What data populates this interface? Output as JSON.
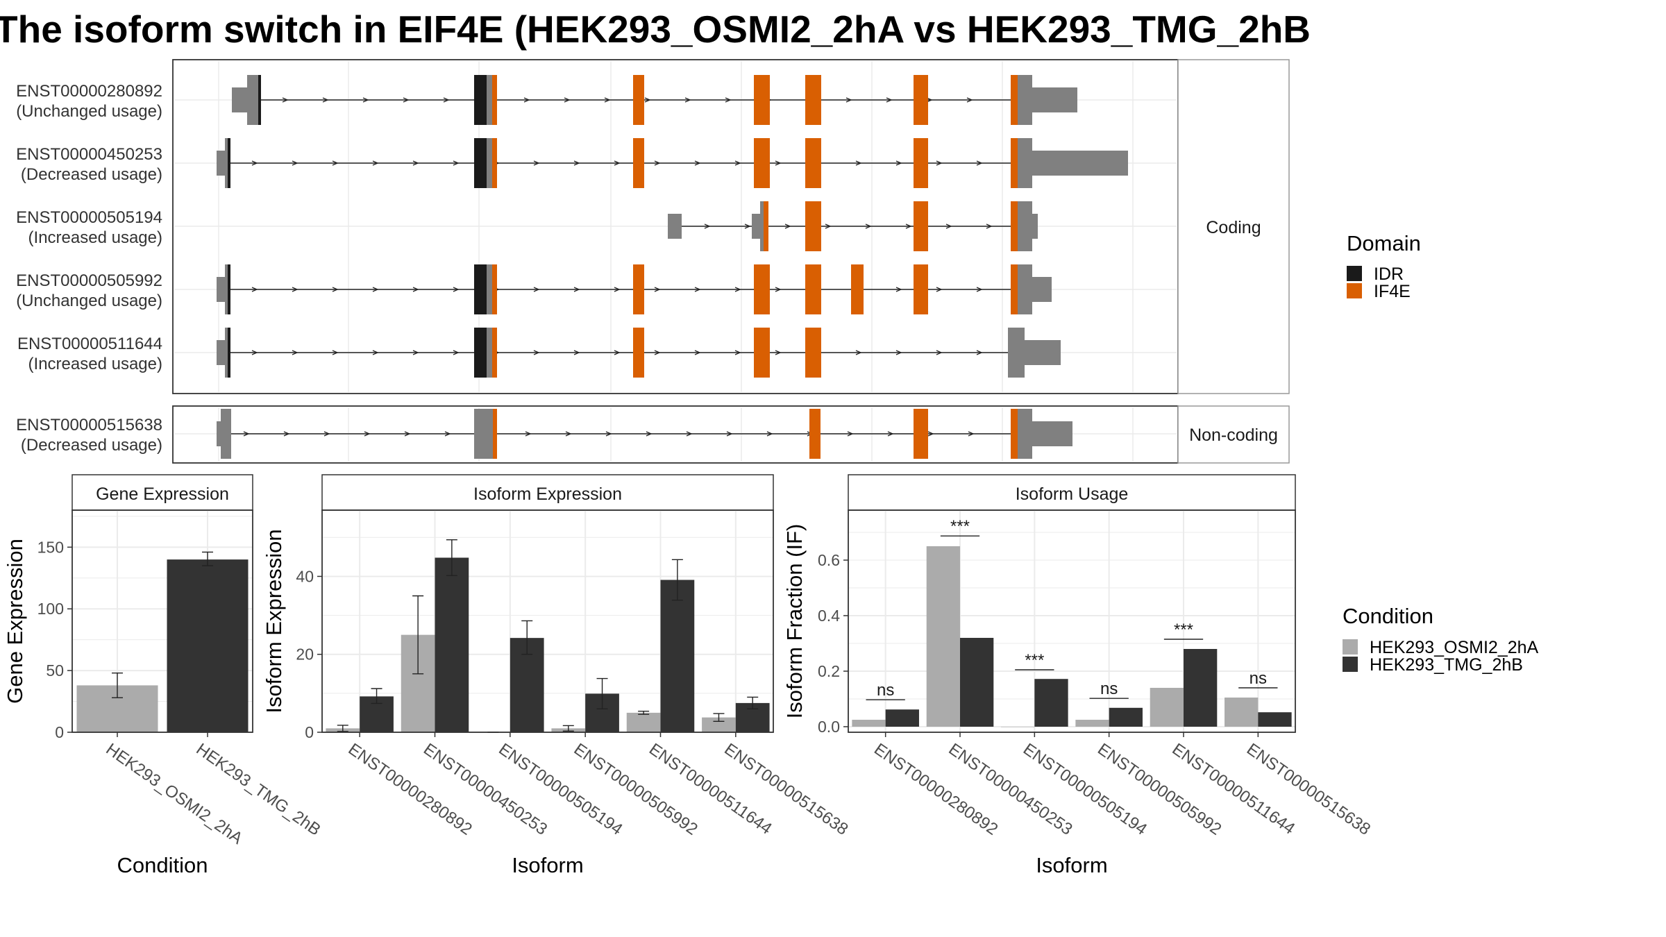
{
  "title": "The isoform switch in EIF4E (HEK293_OSMI2_2hA vs HEK293_TMG_2hB",
  "colors": {
    "utr": "#808080",
    "idr": "#1a1a1a",
    "if4e": "#d95f02",
    "cond_a": "#ababab",
    "cond_b": "#333333",
    "panel_border": "#333333",
    "strip_border": "#999999",
    "grid": "#ebebeb"
  },
  "structure": {
    "facets": [
      "Coding",
      "Non-coding"
    ],
    "isoforms": [
      {
        "id": "ENST00000280892",
        "usage": "(Unchanged usage)",
        "facet": "Coding"
      },
      {
        "id": "ENST00000450253",
        "usage": "(Decreased usage)",
        "facet": "Coding"
      },
      {
        "id": "ENST00000505194",
        "usage": "(Increased usage)",
        "facet": "Coding"
      },
      {
        "id": "ENST00000505992",
        "usage": "(Unchanged usage)",
        "facet": "Coding"
      },
      {
        "id": "ENST00000511644",
        "usage": "(Increased usage)",
        "facet": "Coding"
      },
      {
        "id": "ENST00000515638",
        "usage": "(Decreased usage)",
        "facet": "Non-coding"
      }
    ]
  },
  "legend_domain": {
    "title": "Domain",
    "items": [
      {
        "label": "IDR",
        "color": "#1a1a1a"
      },
      {
        "label": "IF4E",
        "color": "#d95f02"
      }
    ]
  },
  "legend_condition": {
    "title": "Condition",
    "items": [
      {
        "label": "HEK293_OSMI2_2hA",
        "color": "#ababab"
      },
      {
        "label": "HEK293_TMG_2hB",
        "color": "#333333"
      }
    ]
  },
  "chart_data": [
    {
      "type": "bar",
      "title": "Gene Expression",
      "xlabel": "Condition",
      "ylabel": "Gene Expression",
      "categories": [
        "HEK293_OSMI2_2hA",
        "HEK293_TMG_2hB"
      ],
      "values": [
        38,
        140
      ],
      "error_low": [
        28,
        135
      ],
      "error_high": [
        48,
        146
      ],
      "ylim": [
        0,
        180
      ],
      "yticks": [
        "0",
        "50",
        "100",
        "150"
      ]
    },
    {
      "type": "bar",
      "title": "Isoform Expression",
      "xlabel": "Isoform",
      "ylabel": "Isoform Expression",
      "categories": [
        "ENST00000280892",
        "ENST00000450253",
        "ENST00000505194",
        "ENST00000505992",
        "ENST00000511644",
        "ENST00000515638"
      ],
      "series": [
        {
          "name": "HEK293_OSMI2_2hA",
          "values": [
            1,
            25,
            0,
            1,
            5,
            3.8
          ],
          "error_low": [
            0.2,
            15,
            0,
            0.3,
            4.6,
            2.8
          ],
          "error_high": [
            1.8,
            35,
            0,
            1.7,
            5.4,
            4.8
          ]
        },
        {
          "name": "HEK293_TMG_2hB",
          "values": [
            9.2,
            44.8,
            24.2,
            9.9,
            39.1,
            7.5
          ],
          "error_low": [
            7.4,
            40.2,
            20,
            6,
            33.9,
            6
          ],
          "error_high": [
            11.2,
            49.4,
            28.6,
            13.8,
            44.3,
            9
          ]
        }
      ],
      "ylim": [
        0,
        57
      ],
      "yticks": [
        "0",
        "20",
        "40"
      ]
    },
    {
      "type": "bar",
      "title": "Isoform Usage",
      "xlabel": "Isoform",
      "ylabel": "Isoform Fraction (IF)",
      "categories": [
        "ENST00000280892",
        "ENST00000450253",
        "ENST00000505194",
        "ENST00000505992",
        "ENST00000511644",
        "ENST00000515638"
      ],
      "series": [
        {
          "name": "HEK293_OSMI2_2hA",
          "values": [
            0.025,
            0.65,
            0,
            0.025,
            0.14,
            0.105
          ]
        },
        {
          "name": "HEK293_TMG_2hB",
          "values": [
            0.062,
            0.32,
            0.172,
            0.068,
            0.28,
            0.052
          ]
        }
      ],
      "significance": [
        "ns",
        "***",
        "***",
        "ns",
        "***",
        "ns"
      ],
      "significance_y": [
        0.097,
        0.687,
        0.205,
        0.102,
        0.315,
        0.14
      ],
      "ylim": [
        -0.02,
        0.78
      ],
      "yticks": [
        "0.0",
        "0.2",
        "0.4",
        "0.6"
      ]
    }
  ]
}
